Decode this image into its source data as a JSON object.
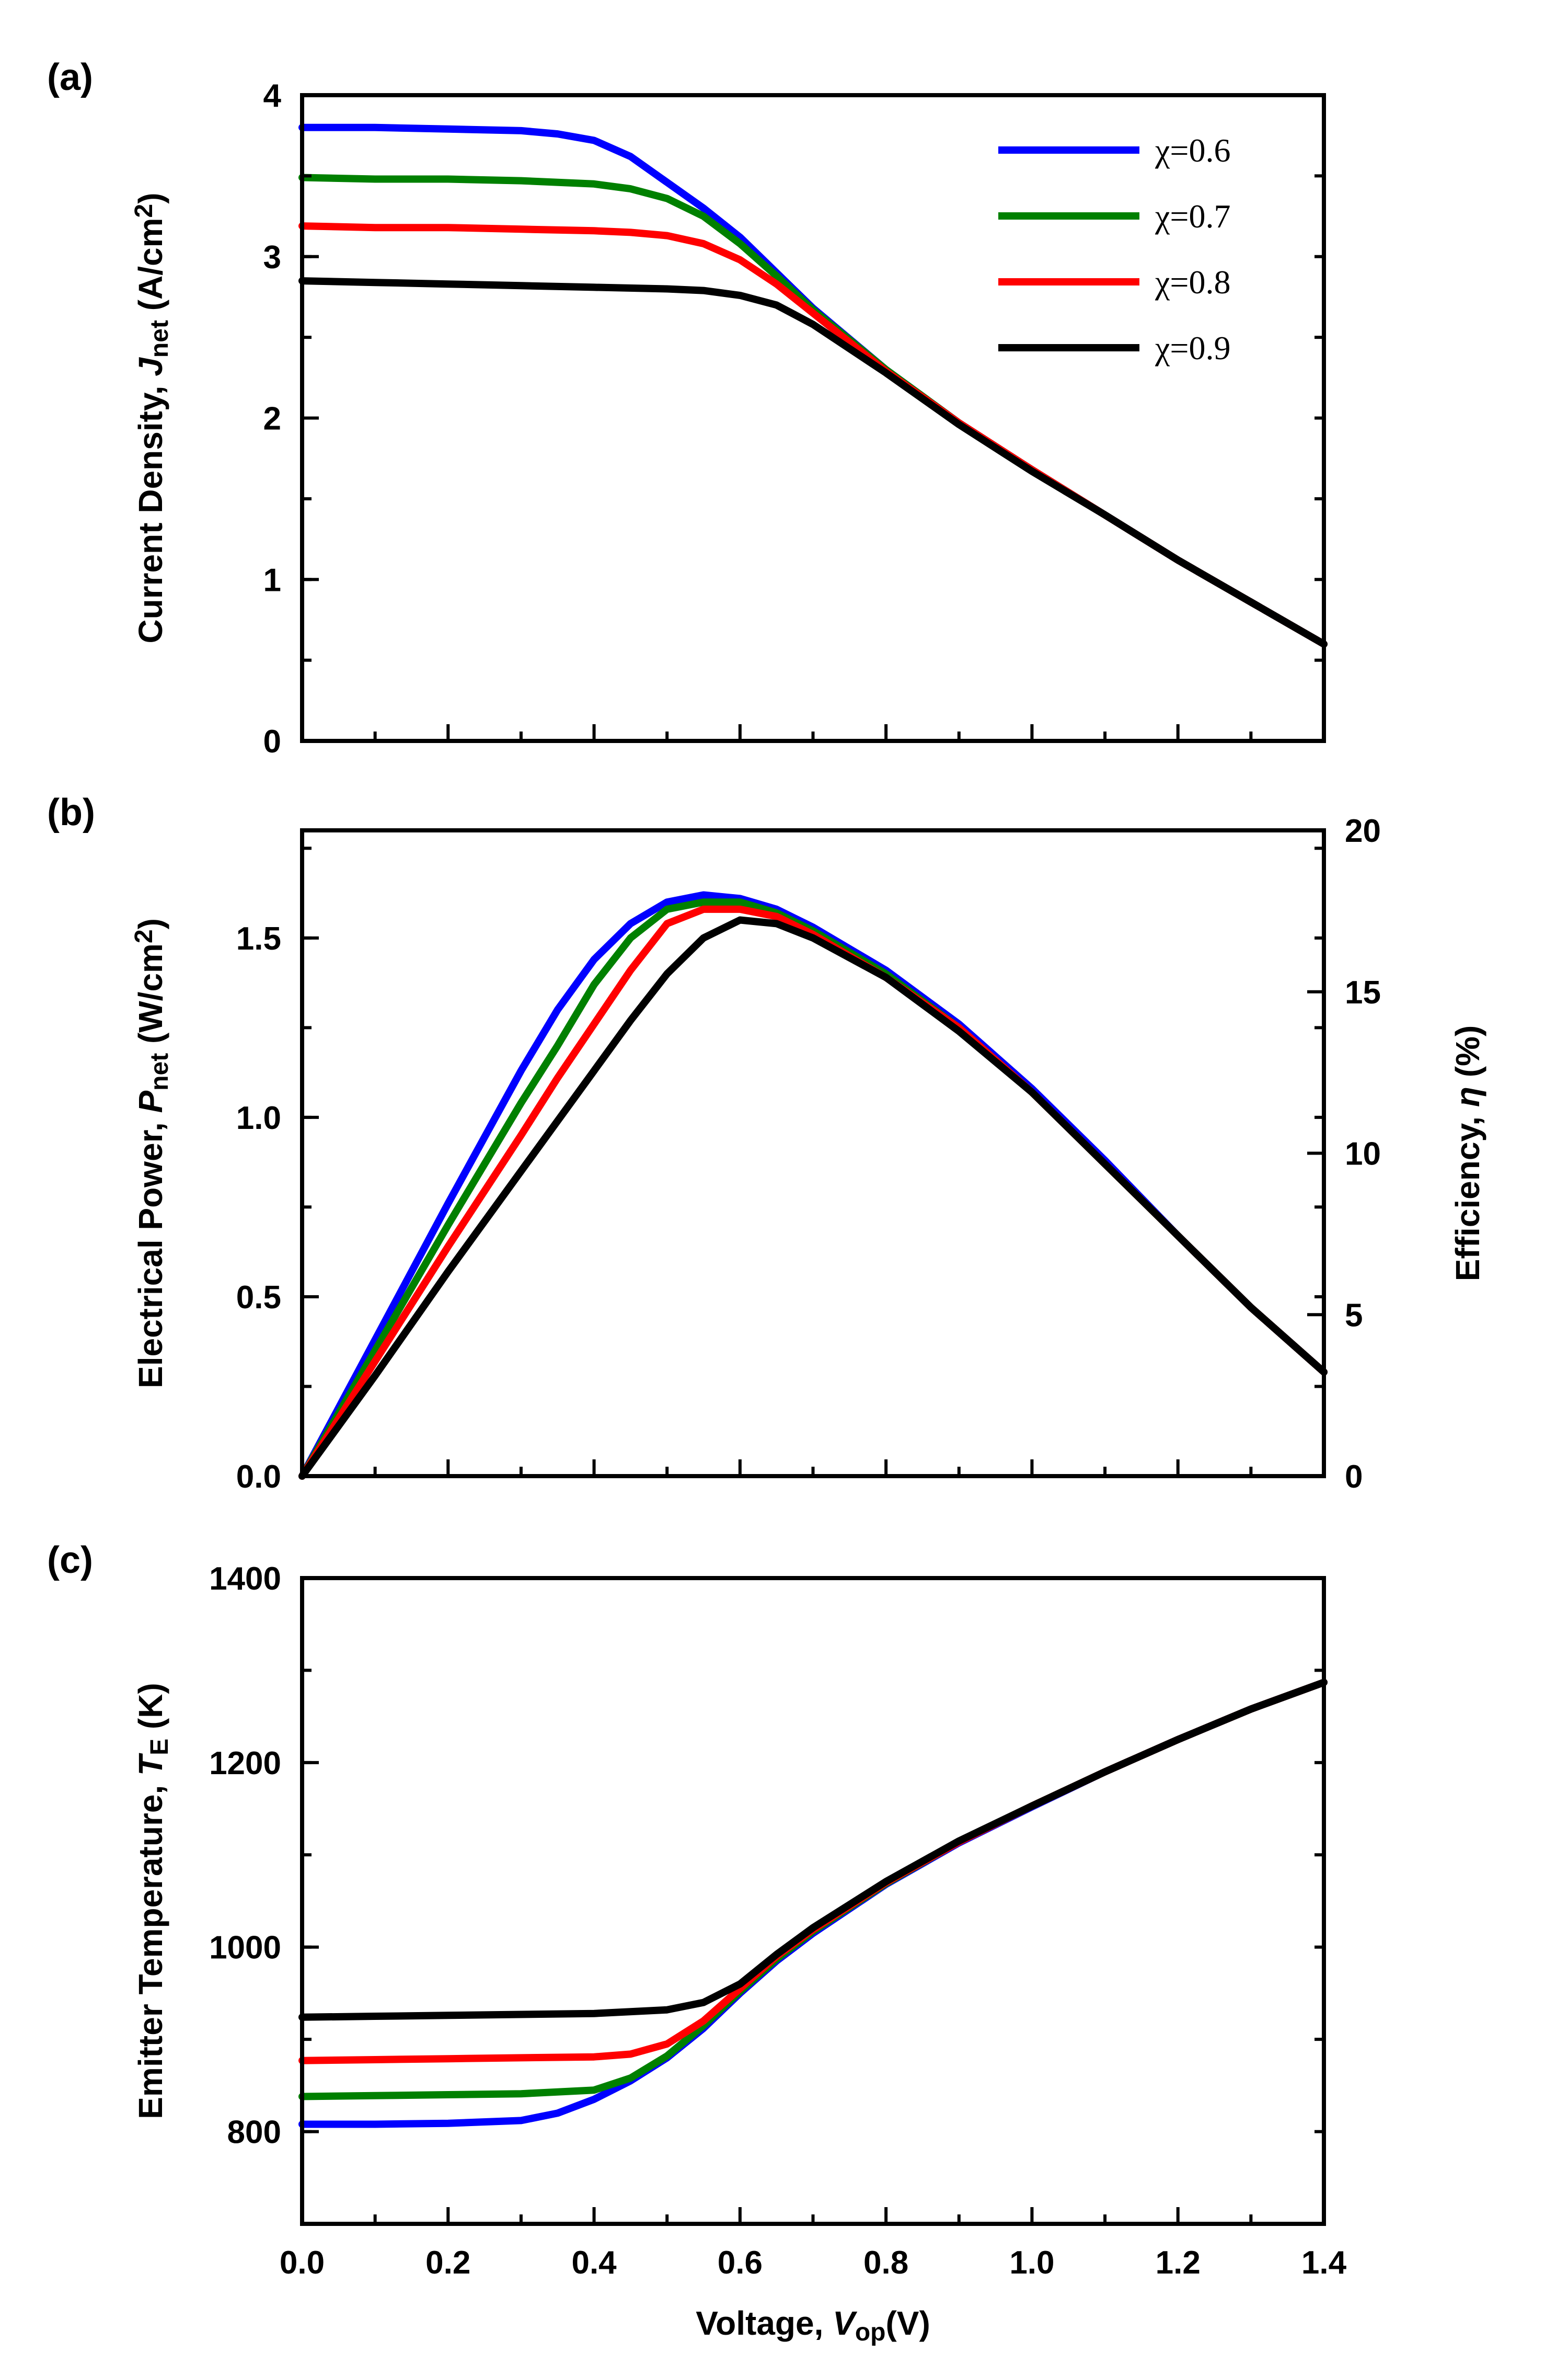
{
  "chart_data": [
    {
      "panel": "(a)",
      "type": "line",
      "ylabel": "Current Density, J_net (A/cm^2)",
      "ylabel_parts": {
        "prefix": "Current Density, ",
        "italic": "J",
        "sub": "net",
        "unit": " (A/cm",
        "sup": "2",
        "close": ")"
      },
      "xlim": [
        0,
        1.4
      ],
      "ylim": [
        0,
        4
      ],
      "yticks": [
        "0",
        "1",
        "2",
        "3",
        "4"
      ],
      "legend_position": "top-right",
      "legend": [
        "χ=0.6",
        "χ=0.7",
        "χ=0.8",
        "χ=0.9"
      ],
      "series": [
        {
          "name": "χ=0.6",
          "color": "#0000ff",
          "points": [
            [
              0,
              3.8
            ],
            [
              0.1,
              3.8
            ],
            [
              0.2,
              3.79
            ],
            [
              0.3,
              3.78
            ],
            [
              0.35,
              3.76
            ],
            [
              0.4,
              3.72
            ],
            [
              0.45,
              3.62
            ],
            [
              0.5,
              3.46
            ],
            [
              0.55,
              3.3
            ],
            [
              0.6,
              3.12
            ],
            [
              0.65,
              2.9
            ],
            [
              0.7,
              2.68
            ],
            [
              0.8,
              2.3
            ],
            [
              0.9,
              1.97
            ],
            [
              1.0,
              1.68
            ],
            [
              1.1,
              1.4
            ],
            [
              1.2,
              1.12
            ],
            [
              1.3,
              0.86
            ],
            [
              1.4,
              0.6
            ]
          ]
        },
        {
          "name": "χ=0.7",
          "color": "#008000",
          "points": [
            [
              0,
              3.49
            ],
            [
              0.1,
              3.48
            ],
            [
              0.2,
              3.48
            ],
            [
              0.3,
              3.47
            ],
            [
              0.4,
              3.45
            ],
            [
              0.45,
              3.42
            ],
            [
              0.5,
              3.36
            ],
            [
              0.55,
              3.25
            ],
            [
              0.6,
              3.08
            ],
            [
              0.65,
              2.88
            ],
            [
              0.7,
              2.67
            ],
            [
              0.8,
              2.3
            ],
            [
              0.9,
              1.97
            ],
            [
              1.0,
              1.68
            ],
            [
              1.1,
              1.4
            ],
            [
              1.2,
              1.12
            ],
            [
              1.3,
              0.86
            ],
            [
              1.4,
              0.6
            ]
          ]
        },
        {
          "name": "χ=0.8",
          "color": "#ff0000",
          "points": [
            [
              0,
              3.19
            ],
            [
              0.1,
              3.18
            ],
            [
              0.2,
              3.18
            ],
            [
              0.3,
              3.17
            ],
            [
              0.4,
              3.16
            ],
            [
              0.45,
              3.15
            ],
            [
              0.5,
              3.13
            ],
            [
              0.55,
              3.08
            ],
            [
              0.6,
              2.98
            ],
            [
              0.65,
              2.83
            ],
            [
              0.7,
              2.65
            ],
            [
              0.8,
              2.29
            ],
            [
              0.9,
              1.97
            ],
            [
              1.0,
              1.68
            ],
            [
              1.1,
              1.4
            ],
            [
              1.2,
              1.12
            ],
            [
              1.3,
              0.86
            ],
            [
              1.4,
              0.6
            ]
          ]
        },
        {
          "name": "χ=0.9",
          "color": "#000000",
          "points": [
            [
              0,
              2.85
            ],
            [
              0.1,
              2.84
            ],
            [
              0.2,
              2.83
            ],
            [
              0.3,
              2.82
            ],
            [
              0.4,
              2.81
            ],
            [
              0.5,
              2.8
            ],
            [
              0.55,
              2.79
            ],
            [
              0.6,
              2.76
            ],
            [
              0.65,
              2.7
            ],
            [
              0.7,
              2.58
            ],
            [
              0.8,
              2.28
            ],
            [
              0.9,
              1.96
            ],
            [
              1.0,
              1.67
            ],
            [
              1.1,
              1.4
            ],
            [
              1.2,
              1.12
            ],
            [
              1.3,
              0.86
            ],
            [
              1.4,
              0.6
            ]
          ]
        }
      ]
    },
    {
      "panel": "(b)",
      "type": "line",
      "ylabel": "Electrical Power, P_net (W/cm^2)",
      "ylabel_parts": {
        "prefix": "Electrical Power, ",
        "italic": "P",
        "sub": "net",
        "unit": " (W/cm",
        "sup": "2",
        "close": ")"
      },
      "ylabel_right": "Efficiency, η (%)",
      "ylabel_right_parts": {
        "prefix": "Efficiency, ",
        "italic": "η",
        "unit": " (%)"
      },
      "xlim": [
        0,
        1.4
      ],
      "ylim": [
        0,
        1.8
      ],
      "yticks": [
        "0.0",
        "0.5",
        "1.0",
        "1.5"
      ],
      "ylim_right": [
        0,
        20
      ],
      "yticks_right": [
        "0",
        "5",
        "10",
        "15",
        "20"
      ],
      "series": [
        {
          "name": "χ=0.6",
          "color": "#0000ff",
          "points": [
            [
              0,
              0
            ],
            [
              0.1,
              0.38
            ],
            [
              0.2,
              0.76
            ],
            [
              0.3,
              1.13
            ],
            [
              0.35,
              1.3
            ],
            [
              0.4,
              1.44
            ],
            [
              0.45,
              1.54
            ],
            [
              0.5,
              1.6
            ],
            [
              0.55,
              1.62
            ],
            [
              0.6,
              1.61
            ],
            [
              0.65,
              1.58
            ],
            [
              0.7,
              1.53
            ],
            [
              0.8,
              1.41
            ],
            [
              0.9,
              1.26
            ],
            [
              1.0,
              1.08
            ],
            [
              1.1,
              0.88
            ],
            [
              1.2,
              0.67
            ],
            [
              1.3,
              0.47
            ],
            [
              1.4,
              0.29
            ]
          ]
        },
        {
          "name": "χ=0.7",
          "color": "#008000",
          "points": [
            [
              0,
              0
            ],
            [
              0.1,
              0.35
            ],
            [
              0.2,
              0.7
            ],
            [
              0.3,
              1.04
            ],
            [
              0.35,
              1.2
            ],
            [
              0.4,
              1.37
            ],
            [
              0.45,
              1.5
            ],
            [
              0.5,
              1.58
            ],
            [
              0.55,
              1.6
            ],
            [
              0.6,
              1.6
            ],
            [
              0.65,
              1.57
            ],
            [
              0.7,
              1.52
            ],
            [
              0.8,
              1.4
            ],
            [
              0.9,
              1.25
            ],
            [
              1.0,
              1.07
            ],
            [
              1.1,
              0.87
            ],
            [
              1.2,
              0.67
            ],
            [
              1.3,
              0.47
            ],
            [
              1.4,
              0.29
            ]
          ]
        },
        {
          "name": "χ=0.8",
          "color": "#ff0000",
          "points": [
            [
              0,
              0
            ],
            [
              0.1,
              0.32
            ],
            [
              0.2,
              0.64
            ],
            [
              0.3,
              0.95
            ],
            [
              0.35,
              1.11
            ],
            [
              0.4,
              1.26
            ],
            [
              0.45,
              1.41
            ],
            [
              0.5,
              1.54
            ],
            [
              0.55,
              1.58
            ],
            [
              0.6,
              1.58
            ],
            [
              0.65,
              1.56
            ],
            [
              0.7,
              1.51
            ],
            [
              0.8,
              1.39
            ],
            [
              0.9,
              1.25
            ],
            [
              1.0,
              1.07
            ],
            [
              1.1,
              0.87
            ],
            [
              1.2,
              0.67
            ],
            [
              1.3,
              0.47
            ],
            [
              1.4,
              0.29
            ]
          ]
        },
        {
          "name": "χ=0.9",
          "color": "#000000",
          "points": [
            [
              0,
              0
            ],
            [
              0.1,
              0.28
            ],
            [
              0.2,
              0.57
            ],
            [
              0.3,
              0.85
            ],
            [
              0.4,
              1.13
            ],
            [
              0.45,
              1.27
            ],
            [
              0.5,
              1.4
            ],
            [
              0.55,
              1.5
            ],
            [
              0.6,
              1.55
            ],
            [
              0.65,
              1.54
            ],
            [
              0.7,
              1.5
            ],
            [
              0.8,
              1.39
            ],
            [
              0.9,
              1.24
            ],
            [
              1.0,
              1.07
            ],
            [
              1.1,
              0.87
            ],
            [
              1.2,
              0.67
            ],
            [
              1.3,
              0.47
            ],
            [
              1.4,
              0.29
            ]
          ]
        }
      ]
    },
    {
      "panel": "(c)",
      "type": "line",
      "ylabel": "Emitter Temperature, T_E (K)",
      "ylabel_parts": {
        "prefix": "Emitter Temperature, ",
        "italic": "T",
        "sub": "E",
        "unit": " (K)"
      },
      "xlabel": "Voltage, V_op(V)",
      "xlabel_parts": {
        "prefix": "Voltage, ",
        "italic": "V",
        "sub": "op",
        "unit": "(V)"
      },
      "xlim": [
        0,
        1.4
      ],
      "xticks": [
        "0.0",
        "0.2",
        "0.4",
        "0.6",
        "0.8",
        "1.0",
        "1.2",
        "1.4"
      ],
      "ylim": [
        700,
        1400
      ],
      "yticks": [
        "800",
        "1000",
        "1200",
        "1400"
      ],
      "series": [
        {
          "name": "χ=0.6",
          "color": "#0000ff",
          "points": [
            [
              0,
              808
            ],
            [
              0.1,
              808
            ],
            [
              0.2,
              809
            ],
            [
              0.3,
              812
            ],
            [
              0.35,
              820
            ],
            [
              0.4,
              835
            ],
            [
              0.45,
              855
            ],
            [
              0.5,
              880
            ],
            [
              0.55,
              912
            ],
            [
              0.6,
              950
            ],
            [
              0.65,
              985
            ],
            [
              0.7,
              1015
            ],
            [
              0.8,
              1068
            ],
            [
              0.9,
              1113
            ],
            [
              1.0,
              1152
            ],
            [
              1.1,
              1190
            ],
            [
              1.2,
              1225
            ],
            [
              1.3,
              1258
            ],
            [
              1.4,
              1287
            ]
          ]
        },
        {
          "name": "χ=0.7",
          "color": "#008000",
          "points": [
            [
              0,
              838
            ],
            [
              0.1,
              839
            ],
            [
              0.2,
              840
            ],
            [
              0.3,
              841
            ],
            [
              0.4,
              845
            ],
            [
              0.45,
              858
            ],
            [
              0.5,
              882
            ],
            [
              0.55,
              915
            ],
            [
              0.6,
              952
            ],
            [
              0.65,
              987
            ],
            [
              0.7,
              1017
            ],
            [
              0.8,
              1069
            ],
            [
              0.9,
              1114
            ],
            [
              1.0,
              1153
            ],
            [
              1.1,
              1190
            ],
            [
              1.2,
              1225
            ],
            [
              1.3,
              1258
            ],
            [
              1.4,
              1287
            ]
          ]
        },
        {
          "name": "χ=0.8",
          "color": "#ff0000",
          "points": [
            [
              0,
              877
            ],
            [
              0.1,
              878
            ],
            [
              0.2,
              879
            ],
            [
              0.3,
              880
            ],
            [
              0.4,
              881
            ],
            [
              0.45,
              884
            ],
            [
              0.5,
              895
            ],
            [
              0.55,
              920
            ],
            [
              0.6,
              955
            ],
            [
              0.65,
              990
            ],
            [
              0.7,
              1019
            ],
            [
              0.8,
              1070
            ],
            [
              0.9,
              1114
            ],
            [
              1.0,
              1153
            ],
            [
              1.1,
              1190
            ],
            [
              1.2,
              1225
            ],
            [
              1.3,
              1258
            ],
            [
              1.4,
              1287
            ]
          ]
        },
        {
          "name": "χ=0.9",
          "color": "#000000",
          "points": [
            [
              0,
              924
            ],
            [
              0.1,
              925
            ],
            [
              0.2,
              926
            ],
            [
              0.3,
              927
            ],
            [
              0.4,
              928
            ],
            [
              0.5,
              932
            ],
            [
              0.55,
              940
            ],
            [
              0.6,
              960
            ],
            [
              0.65,
              992
            ],
            [
              0.7,
              1021
            ],
            [
              0.8,
              1071
            ],
            [
              0.9,
              1115
            ],
            [
              1.0,
              1153
            ],
            [
              1.1,
              1190
            ],
            [
              1.2,
              1225
            ],
            [
              1.3,
              1258
            ],
            [
              1.4,
              1287
            ]
          ]
        }
      ]
    }
  ]
}
